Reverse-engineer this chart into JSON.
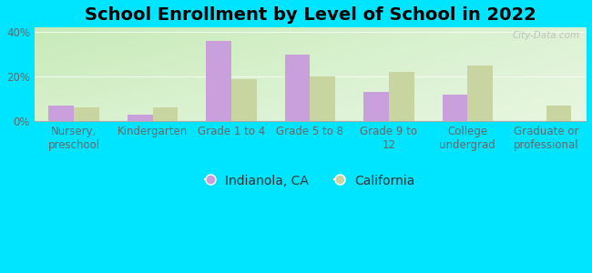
{
  "title": "School Enrollment by Level of School in 2022",
  "categories": [
    "Nursery,\npreschool",
    "Kindergarten",
    "Grade 1 to 4",
    "Grade 5 to 8",
    "Grade 9 to\n12",
    "College\nundergrad",
    "Graduate or\nprofessional"
  ],
  "indianola": [
    7.0,
    3.0,
    36.0,
    30.0,
    13.0,
    12.0,
    0.0
  ],
  "california": [
    6.0,
    6.0,
    19.0,
    20.0,
    22.0,
    25.0,
    7.0
  ],
  "indianola_color": "#c9a0dc",
  "california_color": "#c8d5a0",
  "background_outer": "#00e5ff",
  "bg_corner_tl": "#d8efcc",
  "bg_corner_tr": "#f5f5ee",
  "bg_corner_bl": "#c8e8b8",
  "bg_corner_br": "#eef5e8",
  "ylim": [
    0,
    42
  ],
  "yticks": [
    0,
    20,
    40
  ],
  "ytick_labels": [
    "0%",
    "20%",
    "40%"
  ],
  "legend_indianola": "Indianola, CA",
  "legend_california": "California",
  "watermark": "City-Data.com",
  "title_fontsize": 14,
  "tick_fontsize": 8.5,
  "legend_fontsize": 10,
  "bar_width": 0.32
}
